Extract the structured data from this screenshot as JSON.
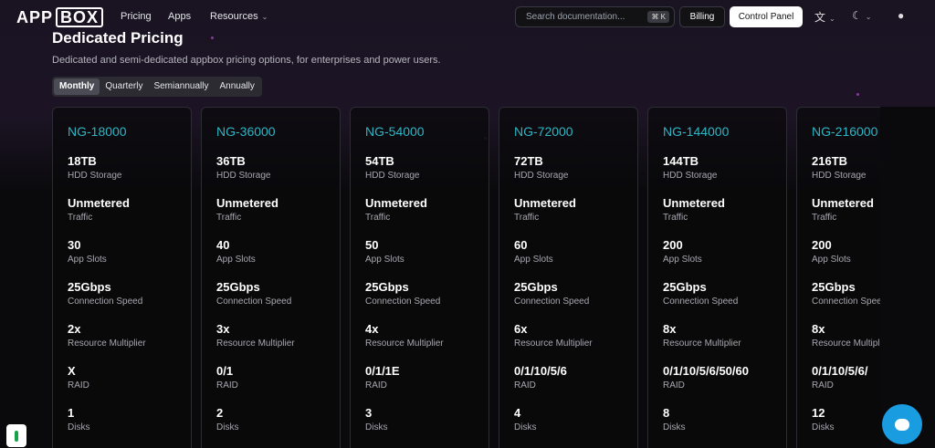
{
  "nav": {
    "logo_left": "APP",
    "logo_box": "BOX",
    "links": [
      "Pricing",
      "Apps",
      "Resources"
    ],
    "search_placeholder": "Search documentation...",
    "search_shortcut": "⌘ K",
    "billing": "Billing",
    "control_panel": "Control Panel"
  },
  "header": {
    "title": "Dedicated Pricing",
    "subtitle": "Dedicated and semi-dedicated appbox pricing options, for enterprises and power users.",
    "tabs": [
      "Monthly",
      "Quarterly",
      "Semiannually",
      "Annually"
    ],
    "active_tab": "Monthly"
  },
  "spec_labels": [
    "HDD Storage",
    "Traffic",
    "App Slots",
    "Connection Speed",
    "Resource Multiplier",
    "RAID",
    "Disks"
  ],
  "plans": [
    {
      "name": "NG-18000",
      "storage": "18TB",
      "traffic": "Unmetered",
      "slots": "30",
      "speed": "25Gbps",
      "multiplier": "2x",
      "raid": "X",
      "disks": "1"
    },
    {
      "name": "NG-36000",
      "storage": "36TB",
      "traffic": "Unmetered",
      "slots": "40",
      "speed": "25Gbps",
      "multiplier": "3x",
      "raid": "0/1",
      "disks": "2"
    },
    {
      "name": "NG-54000",
      "storage": "54TB",
      "traffic": "Unmetered",
      "slots": "50",
      "speed": "25Gbps",
      "multiplier": "4x",
      "raid": "0/1/1E",
      "disks": "3"
    },
    {
      "name": "NG-72000",
      "storage": "72TB",
      "traffic": "Unmetered",
      "slots": "60",
      "speed": "25Gbps",
      "multiplier": "6x",
      "raid": "0/1/10/5/6",
      "disks": "4"
    },
    {
      "name": "NG-144000",
      "storage": "144TB",
      "traffic": "Unmetered",
      "slots": "200",
      "speed": "25Gbps",
      "multiplier": "8x",
      "raid": "0/1/10/5/6/50/60",
      "disks": "8"
    },
    {
      "name": "NG-216000",
      "storage": "216TB",
      "traffic": "Unmetered",
      "slots": "200",
      "speed": "25Gbps",
      "multiplier": "8x",
      "raid": "0/1/10/5/6/",
      "disks": "12"
    }
  ],
  "colors": {
    "accent": "#2fb5c4",
    "chat": "#1a9de0",
    "background": "#0a0a0c"
  },
  "icons": {
    "translate": "translate-icon",
    "theme": "moon-icon",
    "github": "github-icon",
    "chat": "chat-icon"
  }
}
